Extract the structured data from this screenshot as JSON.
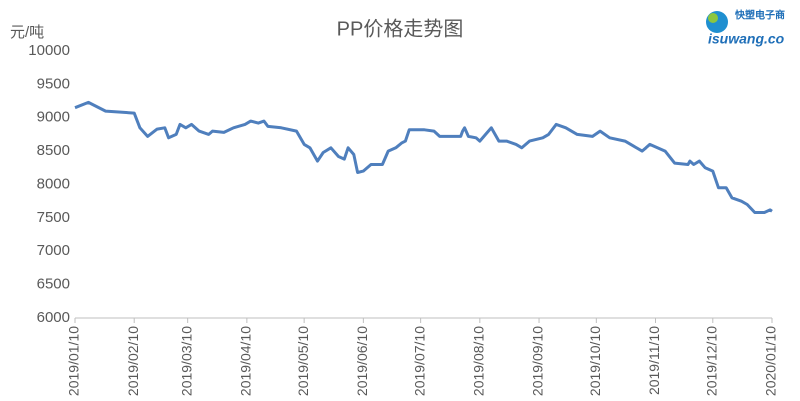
{
  "chart_data": {
    "type": "line",
    "title": "PP价格走势图",
    "y_label": "元/吨",
    "x": [
      "2019/01/10",
      "2019/01/17",
      "2019/01/26",
      "2019/02/10",
      "2019/02/13",
      "2019/02/17",
      "2019/02/22",
      "2019/02/26",
      "2019/02/28",
      "2019/03/04",
      "2019/03/06",
      "2019/03/09",
      "2019/03/12",
      "2019/03/16",
      "2019/03/21",
      "2019/03/23",
      "2019/03/29",
      "2019/04/03",
      "2019/04/09",
      "2019/04/12",
      "2019/04/16",
      "2019/04/19",
      "2019/04/21",
      "2019/04/28",
      "2019/05/06",
      "2019/05/10",
      "2019/05/13",
      "2019/05/17",
      "2019/05/20",
      "2019/05/24",
      "2019/05/28",
      "2019/05/31",
      "2019/06/02",
      "2019/06/05",
      "2019/06/07",
      "2019/06/10",
      "2019/06/14",
      "2019/06/20",
      "2019/06/23",
      "2019/06/27",
      "2019/06/30",
      "2019/07/02",
      "2019/07/04",
      "2019/07/12",
      "2019/07/17",
      "2019/07/20",
      "2019/07/31",
      "2019/08/01",
      "2019/08/02",
      "2019/08/04",
      "2019/08/08",
      "2019/08/10",
      "2019/08/13",
      "2019/08/16",
      "2019/08/20",
      "2019/08/24",
      "2019/08/29",
      "2019/09/01",
      "2019/09/05",
      "2019/09/12",
      "2019/09/15",
      "2019/09/19",
      "2019/09/24",
      "2019/09/30",
      "2019/10/08",
      "2019/10/12",
      "2019/10/17",
      "2019/10/25",
      "2019/11/03",
      "2019/11/05",
      "2019/11/07",
      "2019/11/15",
      "2019/11/20",
      "2019/11/27",
      "2019/11/28",
      "2019/11/30",
      "2019/12/03",
      "2019/12/06",
      "2019/12/10",
      "2019/12/13",
      "2019/12/17",
      "2019/12/20",
      "2019/12/25",
      "2019/12/28",
      "2020/01/01",
      "2020/01/06",
      "2020/01/09",
      "2020/01/10"
    ],
    "series": [
      {
        "name": "PP",
        "color": "#4f7fbd",
        "values": [
          9150,
          9230,
          9100,
          9070,
          8850,
          8720,
          8830,
          8850,
          8700,
          8750,
          8900,
          8850,
          8900,
          8800,
          8750,
          8800,
          8780,
          8850,
          8900,
          8950,
          8920,
          8950,
          8870,
          8850,
          8800,
          8600,
          8550,
          8350,
          8480,
          8550,
          8420,
          8380,
          8550,
          8450,
          8180,
          8200,
          8300,
          8300,
          8500,
          8550,
          8620,
          8650,
          8820,
          8820,
          8800,
          8720,
          8720,
          8800,
          8850,
          8720,
          8700,
          8650,
          8750,
          8850,
          8650,
          8650,
          8600,
          8550,
          8650,
          8700,
          8750,
          8900,
          8850,
          8750,
          8720,
          8800,
          8700,
          8650,
          8500,
          8550,
          8600,
          8500,
          8320,
          8300,
          8350,
          8300,
          8350,
          8250,
          8200,
          7950,
          7950,
          7800,
          7750,
          7700,
          7580,
          7580,
          7620,
          7600
        ]
      }
    ],
    "xlim": [
      "2019/01/10",
      "2020/01/10"
    ],
    "xticks": [
      "2019/01/10",
      "2019/02/10",
      "2019/03/10",
      "2019/04/10",
      "2019/05/10",
      "2019/06/10",
      "2019/07/10",
      "2019/08/10",
      "2019/09/10",
      "2019/10/10",
      "2019/11/10",
      "2019/12/10",
      "2020/01/10"
    ],
    "ylim": [
      6000,
      10000
    ],
    "yticks": [
      6000,
      6500,
      7000,
      7500,
      8000,
      8500,
      9000,
      9500,
      10000
    ],
    "grid": false
  },
  "logo": {
    "name": "快塑电子商",
    "url": "isuwang.co"
  }
}
